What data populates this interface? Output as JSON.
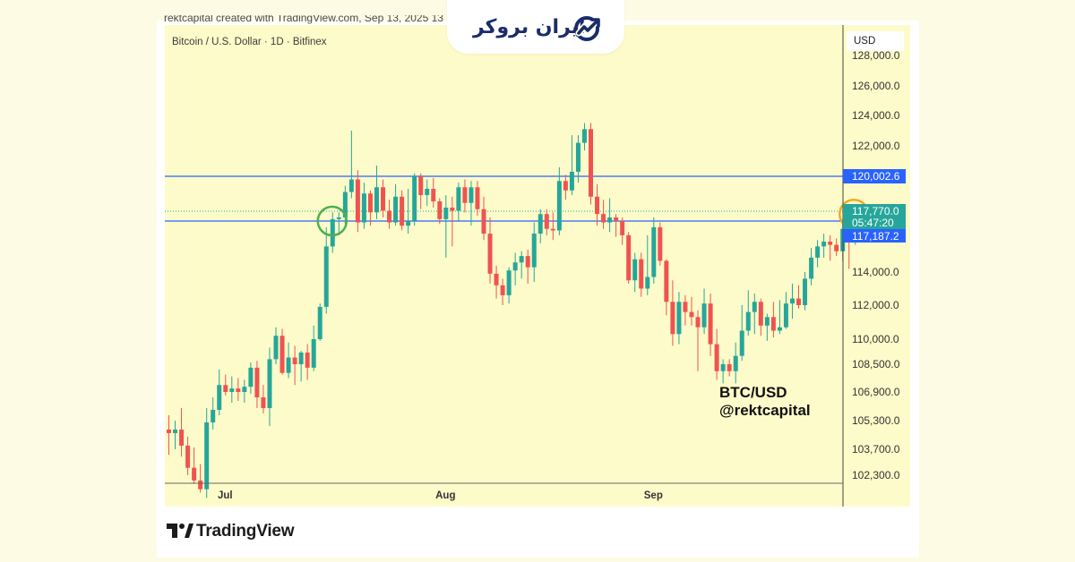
{
  "header": {
    "credit": "rektcapital created with TradingView.com, Sep 13, 2025 13",
    "symbol": "Bitcoin / U.S. Dollar · 1D · Bitfinex",
    "currency": "USD"
  },
  "logo": {
    "text": "ایران بروکر",
    "color": "#1a2c6b"
  },
  "watermark": {
    "line1": "BTC/USD",
    "line2": "@rektcapital"
  },
  "footer": {
    "brand": "TradingView"
  },
  "colors": {
    "up": "#26a69a",
    "down": "#ef5350",
    "level_line": "#2962ff",
    "circle_green": "#4caf50",
    "circle_orange": "#f5a623",
    "chart_bg": "#fdfbc9",
    "page_bg": "#fdfbe3"
  },
  "chart_data": {
    "type": "candlestick",
    "title": "Bitcoin / U.S. Dollar · 1D · Bitfinex",
    "x_ticks": [
      "Jul",
      "Aug",
      "Sep"
    ],
    "y_tick_labels": [
      "128,000.0",
      "126,000.0",
      "124,000.0",
      "122,000.0",
      "114,000.0",
      "112,000.0",
      "110,000.0",
      "108,500.0",
      "106,900.0",
      "105,300.0",
      "103,700.0",
      "102,300.0"
    ],
    "y_ticks": [
      128000,
      126000,
      124000,
      122000,
      114000,
      112000,
      110000,
      108500,
      106900,
      105300,
      103700,
      102300
    ],
    "levels": [
      120002.6,
      117187.2
    ],
    "level_labels": [
      "120,002.6",
      "117,187.2"
    ],
    "last_price": 117770.0,
    "last_price_label": "117,770.0",
    "countdown": "05:47:20",
    "candles": [
      {
        "d": "06-22",
        "o": 104800,
        "h": 105600,
        "l": 103400,
        "c": 104600
      },
      {
        "d": "06-23",
        "o": 104600,
        "h": 105300,
        "l": 103700,
        "c": 104800
      },
      {
        "d": "06-24",
        "o": 104800,
        "h": 106000,
        "l": 103300,
        "c": 103900
      },
      {
        "d": "06-25",
        "o": 103900,
        "h": 104400,
        "l": 102300,
        "c": 102700
      },
      {
        "d": "06-26",
        "o": 102700,
        "h": 103800,
        "l": 101800,
        "c": 102000
      },
      {
        "d": "06-27",
        "o": 102000,
        "h": 102900,
        "l": 101300,
        "c": 101500
      },
      {
        "d": "06-28",
        "o": 101500,
        "h": 106000,
        "l": 101000,
        "c": 105200
      },
      {
        "d": "06-29",
        "o": 105200,
        "h": 106600,
        "l": 104800,
        "c": 105900
      },
      {
        "d": "06-30",
        "o": 105900,
        "h": 108200,
        "l": 105600,
        "c": 107300
      },
      {
        "d": "07-01",
        "o": 107300,
        "h": 107900,
        "l": 106700,
        "c": 106900
      },
      {
        "d": "07-02",
        "o": 106900,
        "h": 107800,
        "l": 106300,
        "c": 107100
      },
      {
        "d": "07-03",
        "o": 107100,
        "h": 107700,
        "l": 106400,
        "c": 106900
      },
      {
        "d": "07-04",
        "o": 106900,
        "h": 107600,
        "l": 106300,
        "c": 107200
      },
      {
        "d": "07-05",
        "o": 107200,
        "h": 108600,
        "l": 106800,
        "c": 108300
      },
      {
        "d": "07-06",
        "o": 108300,
        "h": 108700,
        "l": 106000,
        "c": 106600
      },
      {
        "d": "07-07",
        "o": 106600,
        "h": 107300,
        "l": 105700,
        "c": 106000
      },
      {
        "d": "07-08",
        "o": 106000,
        "h": 109500,
        "l": 105000,
        "c": 108800
      },
      {
        "d": "07-09",
        "o": 108800,
        "h": 110700,
        "l": 108500,
        "c": 110200
      },
      {
        "d": "07-10",
        "o": 110200,
        "h": 110600,
        "l": 107900,
        "c": 108000
      },
      {
        "d": "07-11",
        "o": 108000,
        "h": 109800,
        "l": 107700,
        "c": 108900
      },
      {
        "d": "07-12",
        "o": 108900,
        "h": 109600,
        "l": 107300,
        "c": 108500
      },
      {
        "d": "07-13",
        "o": 108500,
        "h": 109300,
        "l": 107500,
        "c": 109200
      },
      {
        "d": "07-14",
        "o": 109200,
        "h": 109700,
        "l": 107600,
        "c": 108300
      },
      {
        "d": "07-15",
        "o": 108300,
        "h": 110800,
        "l": 108100,
        "c": 110000
      },
      {
        "d": "07-16",
        "o": 110000,
        "h": 112100,
        "l": 109900,
        "c": 111900
      },
      {
        "d": "07-17",
        "o": 111900,
        "h": 116800,
        "l": 111500,
        "c": 115600
      },
      {
        "d": "07-18",
        "o": 115600,
        "h": 117700,
        "l": 115200,
        "c": 117300
      },
      {
        "d": "07-19",
        "o": 117300,
        "h": 117700,
        "l": 116300,
        "c": 117400
      },
      {
        "d": "07-20",
        "o": 117400,
        "h": 119400,
        "l": 117000,
        "c": 119000
      },
      {
        "d": "07-21",
        "o": 119000,
        "h": 123000,
        "l": 118600,
        "c": 119800
      },
      {
        "d": "07-22",
        "o": 119800,
        "h": 120400,
        "l": 116500,
        "c": 117100
      },
      {
        "d": "07-23",
        "o": 117100,
        "h": 119600,
        "l": 116700,
        "c": 118900
      },
      {
        "d": "07-24",
        "o": 118900,
        "h": 119100,
        "l": 116900,
        "c": 117700
      },
      {
        "d": "07-25",
        "o": 117700,
        "h": 120700,
        "l": 117300,
        "c": 119300
      },
      {
        "d": "07-26",
        "o": 119300,
        "h": 119800,
        "l": 117400,
        "c": 117800
      },
      {
        "d": "07-27",
        "o": 117800,
        "h": 118500,
        "l": 116700,
        "c": 117100
      },
      {
        "d": "07-28",
        "o": 117100,
        "h": 119500,
        "l": 116900,
        "c": 118700
      },
      {
        "d": "07-29",
        "o": 118700,
        "h": 119100,
        "l": 116600,
        "c": 116900
      },
      {
        "d": "07-30",
        "o": 116900,
        "h": 119200,
        "l": 116400,
        "c": 117200
      },
      {
        "d": "07-31",
        "o": 117200,
        "h": 120200,
        "l": 116900,
        "c": 120000
      },
      {
        "d": "08-01",
        "o": 120000,
        "h": 120200,
        "l": 117900,
        "c": 118800
      },
      {
        "d": "08-02",
        "o": 118800,
        "h": 119800,
        "l": 118100,
        "c": 119200
      },
      {
        "d": "08-03",
        "o": 119200,
        "h": 119900,
        "l": 118000,
        "c": 118400
      },
      {
        "d": "08-04",
        "o": 118400,
        "h": 118600,
        "l": 117000,
        "c": 117300
      },
      {
        "d": "08-05",
        "o": 117300,
        "h": 118800,
        "l": 114900,
        "c": 118000
      },
      {
        "d": "08-06",
        "o": 118000,
        "h": 118700,
        "l": 115600,
        "c": 117800
      },
      {
        "d": "08-07",
        "o": 117800,
        "h": 119600,
        "l": 117200,
        "c": 119300
      },
      {
        "d": "08-08",
        "o": 119300,
        "h": 119800,
        "l": 117700,
        "c": 118300
      },
      {
        "d": "08-09",
        "o": 118300,
        "h": 119700,
        "l": 116900,
        "c": 119300
      },
      {
        "d": "08-10",
        "o": 119300,
        "h": 119700,
        "l": 117500,
        "c": 117900
      },
      {
        "d": "08-11",
        "o": 117900,
        "h": 118700,
        "l": 116000,
        "c": 116400
      },
      {
        "d": "08-12",
        "o": 116400,
        "h": 117400,
        "l": 113300,
        "c": 113900
      },
      {
        "d": "08-13",
        "o": 113900,
        "h": 114400,
        "l": 112400,
        "c": 113200
      },
      {
        "d": "08-14",
        "o": 113200,
        "h": 113600,
        "l": 112000,
        "c": 112600
      },
      {
        "d": "08-15",
        "o": 112600,
        "h": 114300,
        "l": 112100,
        "c": 114100
      },
      {
        "d": "08-16",
        "o": 114100,
        "h": 115200,
        "l": 113200,
        "c": 114600
      },
      {
        "d": "08-17",
        "o": 114600,
        "h": 115300,
        "l": 113600,
        "c": 115000
      },
      {
        "d": "08-18",
        "o": 115000,
        "h": 115400,
        "l": 113300,
        "c": 114300
      },
      {
        "d": "08-19",
        "o": 114300,
        "h": 117100,
        "l": 113400,
        "c": 116400
      },
      {
        "d": "08-20",
        "o": 116400,
        "h": 117900,
        "l": 115800,
        "c": 117600
      },
      {
        "d": "08-21",
        "o": 117600,
        "h": 117900,
        "l": 116300,
        "c": 116700
      },
      {
        "d": "08-22",
        "o": 116700,
        "h": 117700,
        "l": 116000,
        "c": 116600
      },
      {
        "d": "08-23",
        "o": 116600,
        "h": 120600,
        "l": 116300,
        "c": 119700
      },
      {
        "d": "08-24",
        "o": 119700,
        "h": 120100,
        "l": 118500,
        "c": 119100
      },
      {
        "d": "08-25",
        "o": 119100,
        "h": 122700,
        "l": 118800,
        "c": 120300
      },
      {
        "d": "08-26",
        "o": 120300,
        "h": 122700,
        "l": 119600,
        "c": 122200
      },
      {
        "d": "08-27",
        "o": 122200,
        "h": 123500,
        "l": 121700,
        "c": 123100
      },
      {
        "d": "08-28",
        "o": 123100,
        "h": 123500,
        "l": 118200,
        "c": 118700
      },
      {
        "d": "08-29",
        "o": 118700,
        "h": 119500,
        "l": 116900,
        "c": 117600
      },
      {
        "d": "08-30",
        "o": 117600,
        "h": 118500,
        "l": 116700,
        "c": 117100
      },
      {
        "d": "08-31",
        "o": 117100,
        "h": 118600,
        "l": 116500,
        "c": 117400
      },
      {
        "d": "09-01",
        "o": 117400,
        "h": 117600,
        "l": 116200,
        "c": 117200
      },
      {
        "d": "09-02",
        "o": 117200,
        "h": 117400,
        "l": 115700,
        "c": 116300
      },
      {
        "d": "09-03",
        "o": 116300,
        "h": 116500,
        "l": 113300,
        "c": 113500
      },
      {
        "d": "09-04",
        "o": 113500,
        "h": 115200,
        "l": 112800,
        "c": 114800
      },
      {
        "d": "09-05",
        "o": 114800,
        "h": 115200,
        "l": 112500,
        "c": 113000
      },
      {
        "d": "09-06",
        "o": 113000,
        "h": 116300,
        "l": 112600,
        "c": 113700
      },
      {
        "d": "09-07",
        "o": 113700,
        "h": 117400,
        "l": 113300,
        "c": 116800
      },
      {
        "d": "09-08",
        "o": 116800,
        "h": 117100,
        "l": 114400,
        "c": 114700
      },
      {
        "d": "09-09",
        "o": 114700,
        "h": 114800,
        "l": 111400,
        "c": 112200
      },
      {
        "d": "09-10",
        "o": 112200,
        "h": 113500,
        "l": 109600,
        "c": 110300
      },
      {
        "d": "09-11",
        "o": 110300,
        "h": 112800,
        "l": 109700,
        "c": 112200
      },
      {
        "d": "09-12",
        "o": 112200,
        "h": 112600,
        "l": 110800,
        "c": 111600
      },
      {
        "d": "09-13",
        "o": 111600,
        "h": 112500,
        "l": 110800,
        "c": 111300
      },
      {
        "d": "09-14",
        "o": 111300,
        "h": 111700,
        "l": 108100,
        "c": 110700
      },
      {
        "d": "09-15",
        "o": 110700,
        "h": 113000,
        "l": 110300,
        "c": 112100
      },
      {
        "d": "09-16",
        "o": 112100,
        "h": 112700,
        "l": 109000,
        "c": 109700
      },
      {
        "d": "09-17",
        "o": 109700,
        "h": 110600,
        "l": 107600,
        "c": 108100
      },
      {
        "d": "09-18",
        "o": 108100,
        "h": 108800,
        "l": 107400,
        "c": 108500
      },
      {
        "d": "09-19",
        "o": 108500,
        "h": 108800,
        "l": 107800,
        "c": 108100
      },
      {
        "d": "09-20",
        "o": 108100,
        "h": 109800,
        "l": 107400,
        "c": 109000
      },
      {
        "d": "09-21",
        "o": 109000,
        "h": 112000,
        "l": 108700,
        "c": 110500
      },
      {
        "d": "09-22",
        "o": 110500,
        "h": 112900,
        "l": 110200,
        "c": 111600
      },
      {
        "d": "09-23",
        "o": 111600,
        "h": 112700,
        "l": 110300,
        "c": 112200
      },
      {
        "d": "09-24",
        "o": 112200,
        "h": 112400,
        "l": 110200,
        "c": 110800
      },
      {
        "d": "09-25",
        "o": 110800,
        "h": 111500,
        "l": 109900,
        "c": 111300
      },
      {
        "d": "09-26",
        "o": 111300,
        "h": 112200,
        "l": 110100,
        "c": 110500
      },
      {
        "d": "09-27",
        "o": 110500,
        "h": 112300,
        "l": 110300,
        "c": 110700
      },
      {
        "d": "09-28",
        "o": 110700,
        "h": 112800,
        "l": 110600,
        "c": 112100
      },
      {
        "d": "09-29",
        "o": 112100,
        "h": 113300,
        "l": 111200,
        "c": 112400
      },
      {
        "d": "09-30",
        "o": 112400,
        "h": 113200,
        "l": 111800,
        "c": 112000
      },
      {
        "d": "10-01",
        "o": 112000,
        "h": 114000,
        "l": 111700,
        "c": 113600
      },
      {
        "d": "10-02",
        "o": 113600,
        "h": 115500,
        "l": 113200,
        "c": 114900
      },
      {
        "d": "10-03",
        "o": 114900,
        "h": 116000,
        "l": 114300,
        "c": 115600
      },
      {
        "d": "10-04",
        "o": 115600,
        "h": 116400,
        "l": 114900,
        "c": 115900
      },
      {
        "d": "10-05",
        "o": 115900,
        "h": 116300,
        "l": 114700,
        "c": 115700
      },
      {
        "d": "10-06",
        "o": 115700,
        "h": 116100,
        "l": 115000,
        "c": 115300
      },
      {
        "d": "10-07",
        "o": 115300,
        "h": 117300,
        "l": 114700,
        "c": 116700
      },
      {
        "d": "10-08",
        "o": 116700,
        "h": 117200,
        "l": 114200,
        "c": 116400
      },
      {
        "d": "10-09",
        "o": 116400,
        "h": 118200,
        "l": 115700,
        "c": 117770
      }
    ]
  }
}
